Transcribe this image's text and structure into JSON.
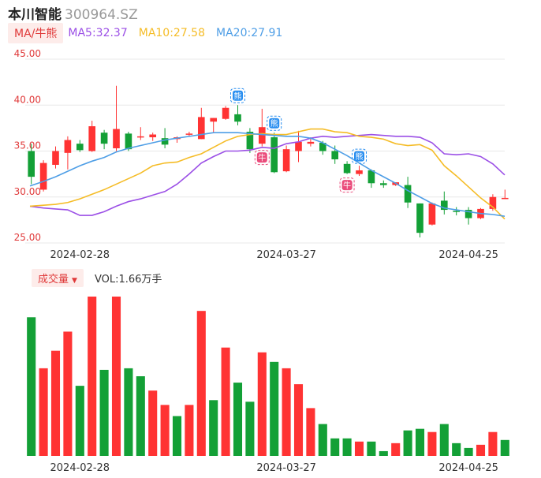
{
  "header": {
    "stock_name": "本川智能",
    "stock_code": "300964.SZ"
  },
  "ma_bar": {
    "toggle_label": "MA/牛熊",
    "ma5": "MA5:32.37",
    "ma10": "MA10:27.58",
    "ma20": "MA20:27.91"
  },
  "volume_bar": {
    "toggle_label": "成交量",
    "value": "VOL:1.66万手"
  },
  "colors": {
    "up": "#ff3333",
    "down": "#13a036",
    "ma5": "#9b4fe6",
    "ma10": "#f5bc26",
    "ma20": "#4e9ee6",
    "axis_label": "#e03a3a",
    "grid": "#e8e8e8",
    "bull_badge": "#ea4c7b",
    "bear_badge": "#2a8ff0"
  },
  "chart_data": [
    {
      "type": "candlestick",
      "ylim": [
        25,
        45
      ],
      "y_ticks": [
        "45.00",
        "40.00",
        "35.00",
        "30.00",
        "25.00"
      ],
      "x_tick_labels": [
        "2024-02-28",
        "2024-03-27",
        "2024-04-25"
      ],
      "x_tick_index": [
        4,
        21,
        36
      ],
      "grid": true,
      "candles": [
        {
          "o": 35.0,
          "h": 35.8,
          "l": 31.4,
          "c": 32.2
        },
        {
          "o": 30.8,
          "h": 34.0,
          "l": 30.6,
          "c": 33.7
        },
        {
          "o": 33.5,
          "h": 35.5,
          "l": 33.1,
          "c": 35.0
        },
        {
          "o": 34.8,
          "h": 36.6,
          "l": 33.0,
          "c": 36.2
        },
        {
          "o": 35.8,
          "h": 36.2,
          "l": 34.9,
          "c": 35.1
        },
        {
          "o": 35.0,
          "h": 38.3,
          "l": 34.9,
          "c": 37.7
        },
        {
          "o": 37.0,
          "h": 37.3,
          "l": 35.2,
          "c": 35.8
        },
        {
          "o": 35.3,
          "h": 42.1,
          "l": 35.0,
          "c": 37.4
        },
        {
          "o": 36.9,
          "h": 37.1,
          "l": 35.0,
          "c": 35.2
        },
        {
          "o": 36.5,
          "h": 37.6,
          "l": 36.2,
          "c": 36.6
        },
        {
          "o": 36.5,
          "h": 37.0,
          "l": 36.1,
          "c": 36.8
        },
        {
          "o": 36.4,
          "h": 37.5,
          "l": 35.3,
          "c": 35.7
        },
        {
          "o": 36.3,
          "h": 36.6,
          "l": 35.9,
          "c": 36.5
        },
        {
          "o": 36.8,
          "h": 37.1,
          "l": 36.6,
          "c": 36.9
        },
        {
          "o": 36.3,
          "h": 39.7,
          "l": 36.3,
          "c": 38.7
        },
        {
          "o": 38.2,
          "h": 38.6,
          "l": 37.0,
          "c": 38.6
        },
        {
          "o": 38.5,
          "h": 39.9,
          "l": 38.4,
          "c": 39.7
        },
        {
          "o": 39.0,
          "h": 40.0,
          "l": 37.8,
          "c": 38.2
        },
        {
          "o": 37.1,
          "h": 37.5,
          "l": 34.8,
          "c": 35.2
        },
        {
          "o": 35.8,
          "h": 39.6,
          "l": 35.5,
          "c": 37.6
        },
        {
          "o": 36.5,
          "h": 37.0,
          "l": 32.6,
          "c": 32.7
        },
        {
          "o": 32.8,
          "h": 35.6,
          "l": 32.7,
          "c": 35.2
        },
        {
          "o": 35.0,
          "h": 37.2,
          "l": 33.8,
          "c": 36.0
        },
        {
          "o": 35.8,
          "h": 36.5,
          "l": 35.5,
          "c": 36.0
        },
        {
          "o": 35.9,
          "h": 36.1,
          "l": 34.6,
          "c": 35.0
        },
        {
          "o": 35.0,
          "h": 35.6,
          "l": 33.6,
          "c": 34.1
        },
        {
          "o": 33.6,
          "h": 33.9,
          "l": 32.5,
          "c": 32.6
        },
        {
          "o": 32.5,
          "h": 33.4,
          "l": 32.3,
          "c": 32.9
        },
        {
          "o": 32.9,
          "h": 33.0,
          "l": 31.0,
          "c": 31.5
        },
        {
          "o": 31.5,
          "h": 31.8,
          "l": 31.0,
          "c": 31.3
        },
        {
          "o": 31.3,
          "h": 31.6,
          "l": 31.2,
          "c": 31.6
        },
        {
          "o": 31.3,
          "h": 32.2,
          "l": 28.8,
          "c": 29.4
        },
        {
          "o": 29.3,
          "h": 29.3,
          "l": 25.6,
          "c": 26.1
        },
        {
          "o": 27.0,
          "h": 29.4,
          "l": 26.9,
          "c": 29.3
        },
        {
          "o": 29.6,
          "h": 30.6,
          "l": 28.1,
          "c": 28.6
        },
        {
          "o": 28.5,
          "h": 28.9,
          "l": 28.0,
          "c": 28.4
        },
        {
          "o": 28.6,
          "h": 28.9,
          "l": 27.0,
          "c": 27.7
        },
        {
          "o": 27.7,
          "h": 28.8,
          "l": 27.6,
          "c": 28.7
        },
        {
          "o": 28.7,
          "h": 30.3,
          "l": 28.5,
          "c": 30.0
        },
        {
          "o": 29.9,
          "h": 30.8,
          "l": 29.8,
          "c": 29.9
        }
      ],
      "series": [
        {
          "values": [
            29.0,
            28.8,
            28.7,
            28.6,
            28.0,
            28.0,
            28.4,
            29.0,
            29.5,
            29.8,
            30.2,
            30.6,
            31.4,
            32.5,
            33.7,
            34.4,
            35.0,
            35.0,
            35.1,
            35.4,
            35.3,
            35.8,
            36.0,
            36.4,
            36.6,
            36.5,
            36.6,
            36.7,
            36.8,
            36.7,
            36.6,
            36.6,
            36.5,
            35.9,
            34.7,
            34.6,
            34.7,
            34.4,
            33.6,
            32.4
          ]
        },
        {
          "values": [
            29.0,
            29.1,
            29.2,
            29.4,
            29.8,
            30.3,
            30.8,
            31.4,
            32.0,
            32.6,
            33.4,
            33.7,
            33.8,
            34.3,
            34.7,
            35.4,
            36.1,
            36.6,
            36.8,
            36.9,
            36.8,
            36.8,
            37.1,
            37.4,
            37.4,
            37.1,
            37.0,
            36.6,
            36.5,
            36.3,
            35.8,
            35.6,
            35.7,
            35.1,
            33.4,
            32.3,
            31.1,
            29.9,
            28.9,
            27.6
          ]
        },
        {
          "values": [
            31.2,
            31.7,
            32.2,
            32.8,
            33.4,
            33.9,
            34.3,
            34.9,
            35.3,
            35.6,
            35.9,
            36.2,
            36.4,
            36.6,
            36.8,
            37.0,
            37.0,
            37.0,
            36.9,
            36.8,
            36.7,
            36.6,
            36.6,
            36.4,
            35.9,
            35.2,
            34.5,
            33.7,
            32.9,
            32.2,
            31.5,
            30.7,
            30.0,
            29.3,
            28.8,
            28.6,
            28.4,
            28.2,
            28.1,
            27.9
          ]
        }
      ],
      "signals": [
        {
          "index": 17,
          "kind": "bear",
          "text": "熊"
        },
        {
          "index": 19,
          "kind": "bull",
          "text": "牛"
        },
        {
          "index": 20,
          "kind": "bear",
          "text": "熊"
        },
        {
          "index": 26,
          "kind": "bull",
          "text": "牛"
        },
        {
          "index": 27,
          "kind": "bear",
          "text": "熊"
        }
      ]
    },
    {
      "type": "bar",
      "x_tick_labels": [
        "2024-02-28",
        "2024-03-27",
        "2024-04-25"
      ],
      "x_tick_index": [
        4,
        21,
        36
      ],
      "ylim": [
        0,
        1.0
      ],
      "values": [
        0.87,
        0.55,
        0.66,
        0.78,
        0.44,
        1.0,
        0.54,
        1.0,
        0.55,
        0.5,
        0.41,
        0.32,
        0.25,
        0.32,
        0.91,
        0.35,
        0.68,
        0.46,
        0.34,
        0.65,
        0.59,
        0.55,
        0.45,
        0.3,
        0.2,
        0.11,
        0.11,
        0.09,
        0.09,
        0.03,
        0.08,
        0.16,
        0.17,
        0.15,
        0.2,
        0.08,
        0.05,
        0.07,
        0.15,
        0.1
      ],
      "up": [
        false,
        true,
        true,
        true,
        false,
        true,
        false,
        true,
        false,
        false,
        true,
        true,
        false,
        true,
        true,
        false,
        true,
        false,
        false,
        true,
        false,
        true,
        true,
        true,
        false,
        false,
        false,
        true,
        false,
        false,
        true,
        false,
        false,
        true,
        false,
        false,
        false,
        true,
        true,
        false
      ]
    }
  ]
}
